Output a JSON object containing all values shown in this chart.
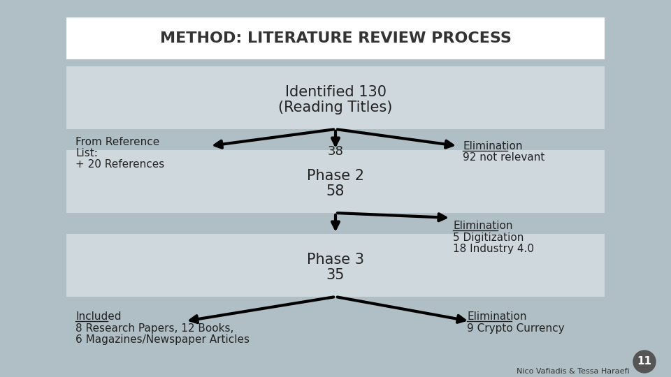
{
  "title": "METHOD: LITERATURE REVIEW PROCESS",
  "background_color": "#b0bec5",
  "light_band_color": "#cfd8dc",
  "box1_text_line1": "Identified 130",
  "box1_text_line2": "(Reading Titles)",
  "box2_text_line1": "Phase 2",
  "box2_text_line2": "58",
  "box3_text_line1": "Phase 3",
  "box3_text_line2": "35",
  "left_note1_line1": "From Reference",
  "left_note1_line2": "List:",
  "left_note1_line3": "+ 20 References",
  "left_note2_line1": "Included",
  "left_note2_line2": "8 Research Papers, 12 Books,",
  "left_note2_line3": "6 Magazines/Newspaper Articles",
  "right_note1_line1": "Elimination",
  "right_note1_line2": "92 not relevant",
  "right_note2_line1": "Elimination",
  "right_note2_line2": "5 Digitization",
  "right_note2_line3": "18 Industry 4.0",
  "right_note3_line1": "Elimination",
  "right_note3_line2": "9 Crypto Currency",
  "num38": "38",
  "footer": "Nico Vafiadis & Tessa Haraefi",
  "page_num": "11",
  "font_family": "DejaVu Sans"
}
